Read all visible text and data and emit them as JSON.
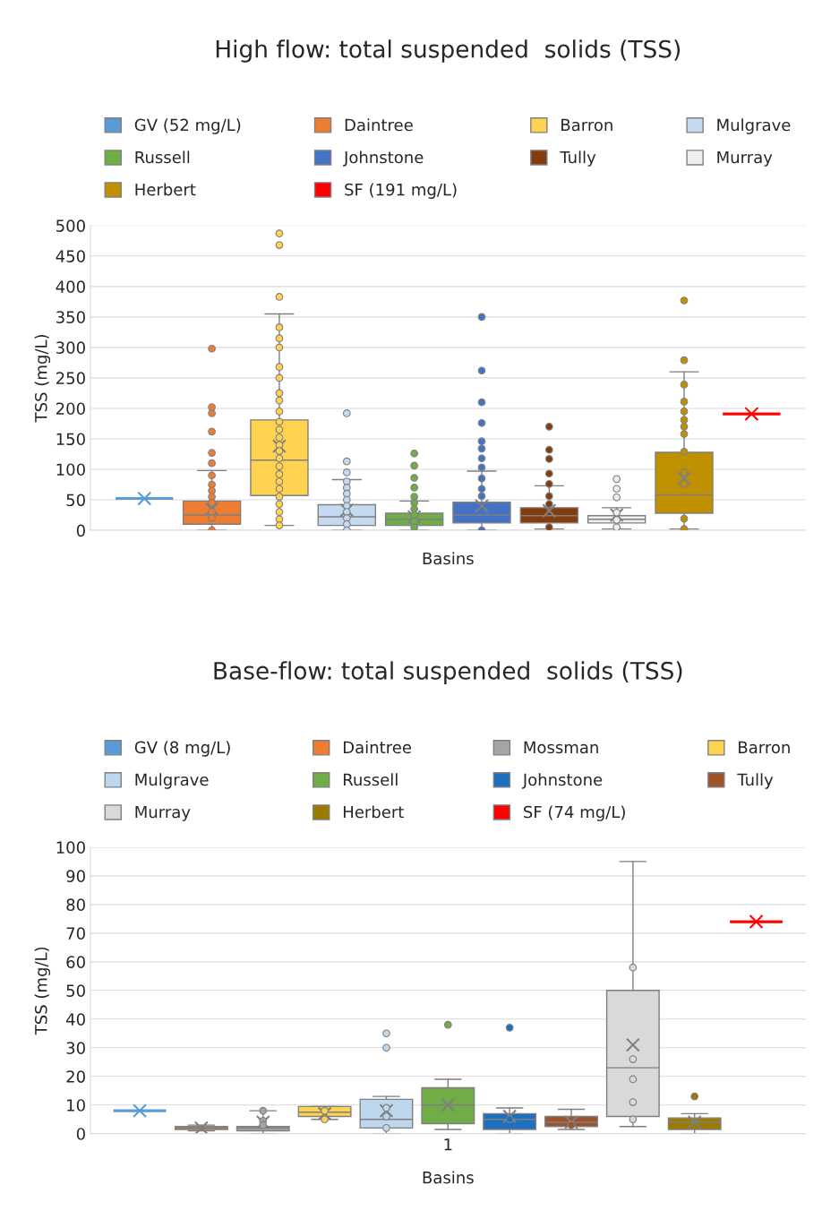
{
  "chart_data": [
    {
      "type": "box",
      "title": "High flow: total suspended  solids (TSS)",
      "xlabel": "Basins",
      "ylabel": "TSS (mg/L)",
      "categories": [
        null
      ],
      "ylim": [
        0,
        500
      ],
      "yticks": [
        0,
        50,
        100,
        150,
        200,
        250,
        300,
        350,
        400,
        450,
        500
      ],
      "grid": "y",
      "legend": "top",
      "marker": "circle",
      "series": [
        {
          "name": "GV (52 mg/L)",
          "color": "#5b9bd5",
          "boxes": [
            {
              "low": 52,
              "q1": 52,
              "median": 52,
              "q3": 52,
              "high": 52,
              "mean": 52
            }
          ]
        },
        {
          "name": "Daintree",
          "color": "#ed7d31",
          "boxes": [
            {
              "low": 0,
              "q1": 10,
              "median": 25,
              "q3": 48,
              "high": 98,
              "mean": 35,
              "outliers": [
                298,
                202,
                192,
                162,
                127,
                110,
                90,
                75,
                65,
                55,
                45,
                30,
                20,
                0
              ]
            }
          ]
        },
        {
          "name": "Barron",
          "color": "#ffd34f",
          "boxes": [
            {
              "low": 8,
              "q1": 57,
              "median": 115,
              "q3": 181,
              "high": 355,
              "mean": 138,
              "outliers": [
                487,
                468,
                383,
                333,
                315,
                300,
                268,
                250,
                225,
                213,
                195,
                178,
                165,
                152,
                140,
                130,
                118,
                105,
                92,
                80,
                68,
                55,
                43,
                30,
                18,
                8
              ]
            }
          ]
        },
        {
          "name": "Mulgrave",
          "color": "#c5d9f1",
          "boxes": [
            {
              "low": 0,
              "q1": 8,
              "median": 22,
              "q3": 42,
              "high": 83,
              "mean": 33,
              "outliers": [
                192,
                113,
                95,
                80,
                70,
                60,
                50,
                40,
                30,
                20,
                10,
                0
              ]
            }
          ]
        },
        {
          "name": "Russell",
          "color": "#70ad47",
          "boxes": [
            {
              "low": 0,
              "q1": 8,
              "median": 18,
              "q3": 28,
              "high": 48,
              "mean": 22,
              "outliers": [
                126,
                106,
                86,
                70,
                55,
                45,
                35,
                25,
                15,
                5
              ]
            }
          ]
        },
        {
          "name": "Johnstone",
          "color": "#4472c4",
          "boxes": [
            {
              "low": 0,
              "q1": 12,
              "median": 25,
              "q3": 46,
              "high": 97,
              "mean": 40,
              "outliers": [
                350,
                262,
                210,
                176,
                146,
                134,
                118,
                103,
                85,
                68,
                56,
                0
              ]
            }
          ]
        },
        {
          "name": "Tully",
          "color": "#843c0c",
          "boxes": [
            {
              "low": 2,
              "q1": 12,
              "median": 24,
              "q3": 37,
              "high": 73,
              "mean": 32,
              "outliers": [
                170,
                132,
                117,
                93,
                76,
                56,
                43,
                5
              ]
            }
          ]
        },
        {
          "name": "Murray",
          "color": "#eeeeee",
          "boxes": [
            {
              "low": 2,
              "q1": 12,
              "median": 18,
              "q3": 24,
              "high": 37,
              "mean": 25,
              "outliers": [
                84,
                68,
                54,
                29,
                17,
                5
              ]
            }
          ]
        },
        {
          "name": "Herbert",
          "color": "#bf9000",
          "boxes": [
            {
              "low": 2,
              "q1": 28,
              "median": 58,
              "q3": 128,
              "high": 260,
              "mean": 85,
              "outliers": [
                377,
                279,
                239,
                211,
                195,
                181,
                170,
                158,
                129,
                95,
                76,
                19,
                2
              ]
            }
          ]
        },
        {
          "name": "SF (191 mg/L)",
          "color": "#ff0000",
          "boxes": [
            {
              "low": 191,
              "q1": 191,
              "median": 191,
              "q3": 191,
              "high": 191,
              "mean": 191
            }
          ]
        }
      ]
    },
    {
      "type": "box",
      "title": "Base-flow: total suspended  solids (TSS)",
      "xlabel": "Basins",
      "ylabel": "TSS (mg/L)",
      "categories": [
        "1"
      ],
      "ylim": [
        0,
        100
      ],
      "yticks": [
        0,
        10,
        20,
        30,
        40,
        50,
        60,
        70,
        80,
        90,
        100
      ],
      "grid": "y",
      "legend": "top",
      "marker": "circle",
      "series": [
        {
          "name": "GV (8 mg/L)",
          "color": "#5b9bd5",
          "boxes": [
            {
              "low": 8,
              "q1": 8,
              "median": 8,
              "q3": 8,
              "high": 8,
              "mean": 8
            }
          ]
        },
        {
          "name": "Daintree",
          "color": "#ed7d31",
          "boxes": [
            {
              "low": 1,
              "q1": 1.5,
              "median": 2,
              "q3": 2.5,
              "high": 3,
              "mean": 2
            }
          ]
        },
        {
          "name": "Mossman",
          "color": "#a5a5a5",
          "boxes": [
            {
              "low": 0,
              "q1": 1,
              "median": 2,
              "q3": 2.5,
              "high": 8,
              "mean": 4,
              "outliers": [
                8,
                4.5,
                3
              ]
            }
          ]
        },
        {
          "name": "Barron",
          "color": "#ffd34f",
          "boxes": [
            {
              "low": 5,
              "q1": 6,
              "median": 7.5,
              "q3": 9.5,
              "high": 9.5,
              "mean": 7,
              "outliers": [
                8,
                5
              ]
            }
          ]
        },
        {
          "name": "Mulgrave",
          "color": "#bdd7ee",
          "boxes": [
            {
              "low": 0,
              "q1": 2,
              "median": 5,
              "q3": 12,
              "high": 13,
              "mean": 8,
              "outliers": [
                35,
                30,
                9,
                6,
                2
              ]
            }
          ]
        },
        {
          "name": "Russell",
          "color": "#70ad47",
          "boxes": [
            {
              "low": 1.5,
              "q1": 3.5,
              "median": 10,
              "q3": 16,
              "high": 19,
              "mean": 10,
              "outliers": [
                38
              ]
            }
          ]
        },
        {
          "name": "Johnstone",
          "color": "#1f6fc0",
          "boxes": [
            {
              "low": 0,
              "q1": 1.5,
              "median": 5,
              "q3": 7,
              "high": 9,
              "mean": 6,
              "outliers": [
                37,
                5
              ]
            }
          ]
        },
        {
          "name": "Tully",
          "color": "#a0522d",
          "boxes": [
            {
              "low": 1.5,
              "q1": 2.5,
              "median": 4,
              "q3": 6,
              "high": 8.5,
              "mean": 4,
              "outliers": [
                3
              ]
            }
          ]
        },
        {
          "name": "Murray",
          "color": "#d9d9d9",
          "boxes": [
            {
              "low": 2.5,
              "q1": 6,
              "median": 23,
              "q3": 50,
              "high": 95,
              "mean": 31,
              "outliers": [
                58,
                26,
                19,
                11,
                5
              ]
            }
          ]
        },
        {
          "name": "Herbert",
          "color": "#9c7a00",
          "boxes": [
            {
              "low": 0,
              "q1": 1.5,
              "median": 4,
              "q3": 5.5,
              "high": 7,
              "mean": 4,
              "outliers": [
                13
              ]
            }
          ]
        },
        {
          "name": "SF (74 mg/L)",
          "color": "#ff0000",
          "boxes": [
            {
              "low": 74,
              "q1": 74,
              "median": 74,
              "q3": 74,
              "high": 74,
              "mean": 74
            }
          ]
        }
      ]
    }
  ]
}
